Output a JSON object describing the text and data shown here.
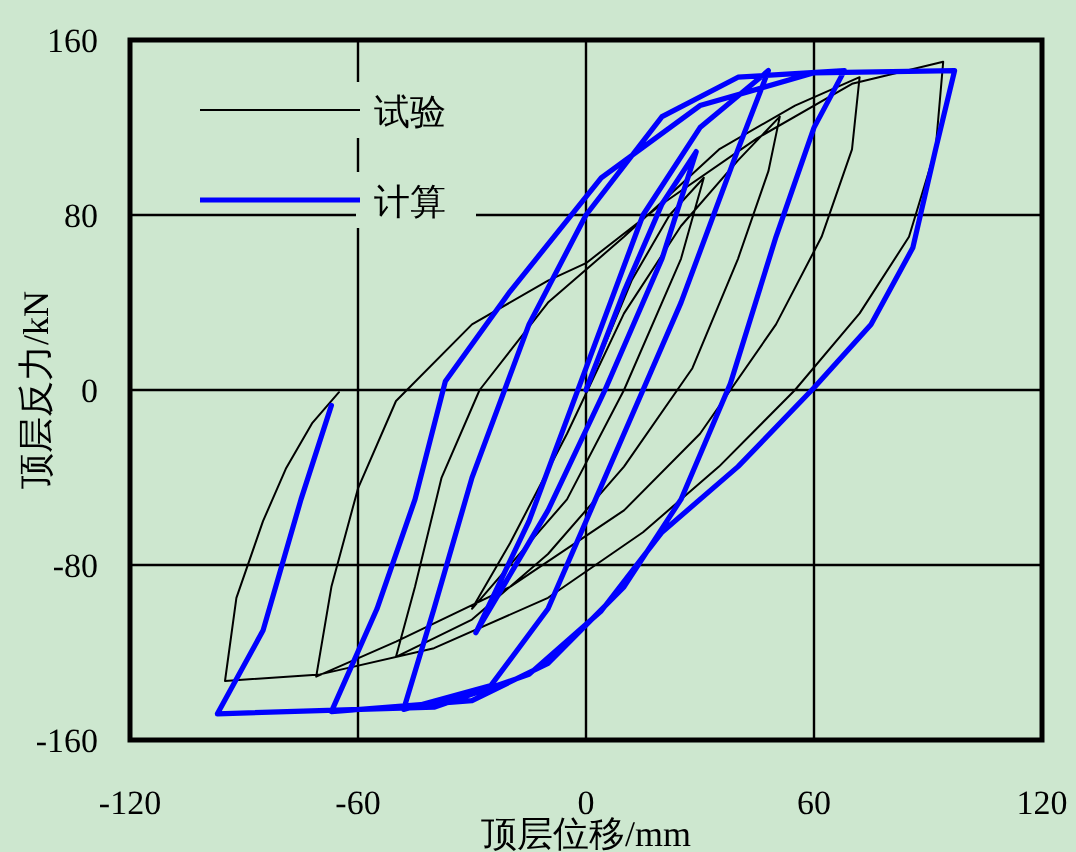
{
  "chart_data": {
    "type": "line",
    "xlabel": "顶层位移/mm",
    "ylabel": "顶层反力/kN",
    "xlim": [
      -120,
      120
    ],
    "xticks": [
      -120,
      -60,
      0,
      60,
      120
    ],
    "ylim": [
      -160,
      160
    ],
    "yticks": [
      -160,
      -80,
      0,
      80,
      160
    ],
    "grid": true,
    "legend": "top left",
    "series": [
      {
        "name": "试验",
        "color": "#000000",
        "x": [
          0,
          12,
          22,
          31,
          25,
          10,
          -5,
          -30,
          -20,
          -5,
          10,
          25,
          40,
          51,
          48,
          40,
          28,
          10,
          -10,
          -30,
          -50,
          -45,
          -38,
          -28,
          -10,
          10,
          35,
          55,
          72,
          70,
          62,
          50,
          30,
          10,
          -20,
          -50,
          -71,
          -67,
          -60,
          -50,
          -30,
          -10,
          0,
          20,
          45,
          70,
          94,
          92,
          85,
          72,
          55,
          35,
          15,
          -10,
          -40,
          -70,
          -95,
          -92,
          -85,
          -79,
          -72,
          -65
        ],
        "values": [
          0,
          50,
          80,
          97,
          60,
          0,
          -50,
          -100,
          -70,
          -20,
          35,
          75,
          105,
          125,
          100,
          60,
          10,
          -35,
          -75,
          -105,
          -122,
          -90,
          -40,
          0,
          40,
          70,
          110,
          130,
          143,
          110,
          70,
          30,
          -20,
          -55,
          -90,
          -115,
          -131,
          -90,
          -45,
          -5,
          30,
          50,
          58,
          85,
          115,
          140,
          150,
          110,
          70,
          35,
          0,
          -35,
          -65,
          -95,
          -118,
          -130,
          -133,
          -95,
          -60,
          -36,
          -15,
          -1
        ]
      },
      {
        "name": "计算",
        "color": "#0000ff",
        "x": [
          0,
          10,
          20,
          29,
          20,
          5,
          -10,
          -29,
          -15,
          0,
          15,
          30,
          48,
          40,
          25,
          10,
          0,
          -10,
          -25,
          -48,
          -40,
          -30,
          -15,
          0,
          20,
          40,
          68,
          60,
          50,
          38,
          25,
          10,
          -10,
          -30,
          -67,
          -55,
          -45,
          -37,
          -20,
          4,
          30,
          60,
          97,
          92,
          86,
          75,
          60,
          40,
          20,
          4,
          -15,
          -40,
          -97,
          -85,
          -75,
          -67
        ],
        "values": [
          0,
          45,
          85,
          109,
          60,
          0,
          -55,
          -111,
          -60,
          10,
          80,
          120,
          146,
          110,
          40,
          -20,
          -60,
          -100,
          -135,
          -146,
          -100,
          -40,
          30,
          80,
          125,
          143,
          146,
          120,
          70,
          3,
          -50,
          -90,
          -125,
          -142,
          -147,
          -100,
          -50,
          4,
          45,
          97,
          130,
          145,
          146,
          110,
          65,
          30,
          1,
          -35,
          -65,
          -101,
          -130,
          -145,
          -148,
          -110,
          -50,
          -7
        ]
      }
    ]
  }
}
